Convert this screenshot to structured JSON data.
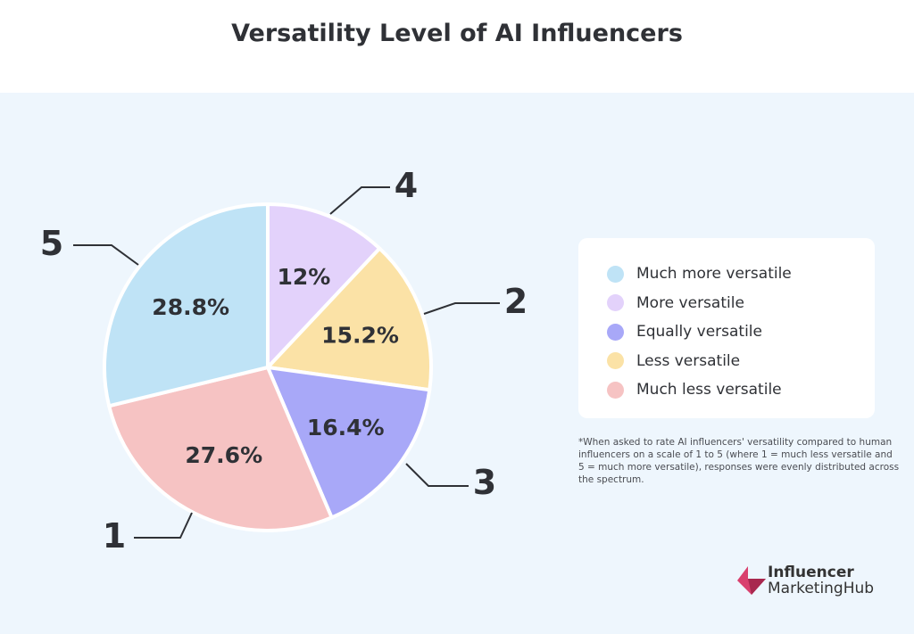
{
  "chart_data": {
    "type": "pie",
    "title": "Versatility Level of AI Influencers",
    "slices": [
      {
        "label": "4",
        "legend": "More versatile",
        "value": 12,
        "display": "12%",
        "color": "#e3d2fb"
      },
      {
        "label": "2",
        "legend": "Less versatile",
        "value": 15.2,
        "display": "15.2%",
        "color": "#fbe2a6"
      },
      {
        "label": "3",
        "legend": "Equally versatile",
        "value": 16.4,
        "display": "16.4%",
        "color": "#a8a8f8"
      },
      {
        "label": "1",
        "legend": "Much less versatile",
        "value": 27.6,
        "display": "27.6%",
        "color": "#f6c3c3"
      },
      {
        "label": "5",
        "legend": "Much more versatile",
        "value": 28.8,
        "display": "28.8%",
        "color": "#bfe3f6"
      }
    ],
    "legend_order": [
      "Much more versatile",
      "More versatile",
      "Equally versatile",
      "Less versatile",
      "Much less versatile"
    ],
    "legend_colors": [
      "#bfe3f6",
      "#e3d2fb",
      "#a8a8f8",
      "#fbe2a6",
      "#f6c3c3"
    ],
    "legend_placement": "right"
  },
  "footnote": "*When asked to rate AI influencers' versatility compared to human influencers on a scale of 1 to 5 (where 1 = much less versatile and 5 = much more versatile), responses were evenly distributed across the spectrum.",
  "logo": {
    "line1": "Influencer",
    "line2": "MarketingHub",
    "color": "#d9406e"
  }
}
